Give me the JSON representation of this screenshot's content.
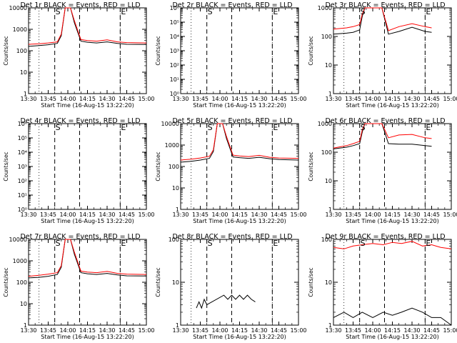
{
  "figure": {
    "xlabel": "Start Time (16-Aug-15 13:22:20)",
    "ylabel": "Counts/sec",
    "x_ticks": [
      "13:30",
      "13:45",
      "14:00",
      "14:15",
      "14:30",
      "14:45",
      "15:00"
    ],
    "colors": {
      "events": "#000000",
      "lld": "#ff0000",
      "axes": "#000000"
    }
  },
  "chart_data": [
    {
      "type": "line",
      "title": "Det 1r BLACK = Events, RED = LLD",
      "yscale": "log",
      "ylim": [
        1,
        10000
      ],
      "y_ticks": [
        "10000",
        "1000",
        "100",
        "10",
        "1"
      ],
      "x": [
        "13:30",
        "13:38",
        "13:45",
        "13:52",
        "13:55",
        "13:58",
        "14:02",
        "14:05",
        "14:10",
        "14:15",
        "14:22",
        "14:30",
        "14:38",
        "14:45",
        "15:00"
      ],
      "series": [
        {
          "name": "Events",
          "color": "#000000",
          "values": [
            160,
            175,
            190,
            220,
            500,
            10000,
            10000,
            2000,
            280,
            250,
            230,
            260,
            220,
            200,
            195
          ]
        },
        {
          "name": "LLD",
          "color": "#ff0000",
          "values": [
            200,
            210,
            230,
            260,
            600,
            10000,
            10000,
            2500,
            330,
            300,
            280,
            320,
            260,
            240,
            230
          ]
        }
      ],
      "vlines": [
        {
          "label": "S",
          "x": "13:50"
        },
        {
          "label": "",
          "x": "14:09"
        },
        {
          "label": "E",
          "x": "14:40"
        }
      ],
      "dotted_lines": [
        "13:38",
        "14:40"
      ]
    },
    {
      "type": "line",
      "title": "Det 2r BLACK = Events, RED = LLD",
      "yscale": "log",
      "ylim": [
        1,
        1000000
      ],
      "y_ticks": [
        "10⁶",
        "10⁵",
        "10⁴",
        "10³",
        "10²",
        "10¹",
        "10⁰"
      ],
      "x": [],
      "series": [],
      "vlines": [
        {
          "label": "S",
          "x": "13:50"
        },
        {
          "label": "",
          "x": "14:09"
        },
        {
          "label": "E",
          "x": "14:40"
        }
      ],
      "dotted_lines": [
        "13:38",
        "14:40"
      ]
    },
    {
      "type": "line",
      "title": "Det 3r BLACK = Events, RED = LLD",
      "yscale": "log",
      "ylim": [
        1,
        1000
      ],
      "y_ticks": [
        "1000",
        "100",
        "10",
        "1"
      ],
      "x": [
        "13:30",
        "13:40",
        "13:45",
        "13:50",
        "13:52",
        "13:54",
        "14:07",
        "14:12",
        "14:20",
        "14:30",
        "14:40",
        "14:45"
      ],
      "series": [
        {
          "name": "Events",
          "color": "#000000",
          "values": [
            120,
            130,
            140,
            170,
            500,
            1000,
            1000,
            120,
            150,
            210,
            150,
            140
          ]
        },
        {
          "name": "LLD",
          "color": "#ff0000",
          "values": [
            180,
            200,
            220,
            260,
            600,
            1000,
            1000,
            160,
            220,
            280,
            220,
            200
          ]
        }
      ],
      "vlines": [
        {
          "label": "S",
          "x": "13:50"
        },
        {
          "label": "",
          "x": "14:09"
        },
        {
          "label": "E",
          "x": "14:40"
        }
      ],
      "dotted_lines": [
        "13:38",
        "14:40"
      ]
    },
    {
      "type": "line",
      "title": "Det 4r BLACK = Events, RED = LLD",
      "yscale": "log",
      "ylim": [
        1,
        1000000
      ],
      "y_ticks": [
        "10⁶",
        "10⁵",
        "10⁴",
        "10³",
        "10²",
        "10¹",
        "10⁰"
      ],
      "x": [],
      "series": [],
      "vlines": [
        {
          "label": "S",
          "x": "13:50"
        },
        {
          "label": "",
          "x": "14:09"
        },
        {
          "label": "E",
          "x": "14:40"
        }
      ],
      "dotted_lines": [
        "13:38",
        "14:40"
      ]
    },
    {
      "type": "line",
      "title": "Det 5r BLACK = Events, RED = LLD",
      "yscale": "log",
      "ylim": [
        1,
        10000
      ],
      "y_ticks": [
        "10000",
        "1000",
        "100",
        "10",
        "1"
      ],
      "x": [
        "13:30",
        "13:38",
        "13:45",
        "13:52",
        "13:55",
        "13:58",
        "14:02",
        "14:05",
        "14:10",
        "14:15",
        "14:22",
        "14:30",
        "14:38",
        "14:45",
        "15:00"
      ],
      "series": [
        {
          "name": "Events",
          "color": "#000000",
          "values": [
            160,
            175,
            200,
            240,
            500,
            10000,
            10000,
            2000,
            280,
            260,
            240,
            270,
            230,
            210,
            200
          ]
        },
        {
          "name": "LLD",
          "color": "#ff0000",
          "values": [
            200,
            220,
            250,
            300,
            600,
            10000,
            10000,
            2500,
            340,
            310,
            290,
            330,
            270,
            250,
            240
          ]
        }
      ],
      "vlines": [
        {
          "label": "S",
          "x": "13:50"
        },
        {
          "label": "",
          "x": "14:09"
        },
        {
          "label": "E",
          "x": "14:40"
        }
      ],
      "dotted_lines": [
        "13:38",
        "14:40"
      ]
    },
    {
      "type": "line",
      "title": "Det 6r BLACK = Events, RED = LLD",
      "yscale": "log",
      "ylim": [
        1,
        1000
      ],
      "y_ticks": [
        "1000",
        "100",
        "10",
        "1"
      ],
      "x": [
        "13:30",
        "13:40",
        "13:45",
        "13:50",
        "13:52",
        "13:54",
        "14:07",
        "14:12",
        "14:20",
        "14:30",
        "14:40",
        "14:45"
      ],
      "series": [
        {
          "name": "Events",
          "color": "#000000",
          "values": [
            130,
            150,
            170,
            200,
            500,
            1000,
            1000,
            200,
            190,
            190,
            170,
            160
          ]
        },
        {
          "name": "LLD",
          "color": "#ff0000",
          "values": [
            140,
            170,
            200,
            240,
            600,
            1000,
            1000,
            320,
            400,
            420,
            320,
            300
          ]
        }
      ],
      "vlines": [
        {
          "label": "S",
          "x": "13:50"
        },
        {
          "label": "",
          "x": "14:09"
        },
        {
          "label": "E",
          "x": "14:40"
        }
      ],
      "dotted_lines": [
        "13:38",
        "14:40"
      ]
    },
    {
      "type": "line",
      "title": "Det 7r BLACK = Events, RED = LLD",
      "yscale": "log",
      "ylim": [
        1,
        10000
      ],
      "y_ticks": [
        "10000",
        "1000",
        "100",
        "10",
        "1"
      ],
      "x": [
        "13:30",
        "13:38",
        "13:45",
        "13:52",
        "13:55",
        "13:58",
        "14:02",
        "14:05",
        "14:10",
        "14:15",
        "14:22",
        "14:30",
        "14:38",
        "14:45",
        "15:00"
      ],
      "series": [
        {
          "name": "Events",
          "color": "#000000",
          "values": [
            160,
            170,
            190,
            230,
            500,
            10000,
            10000,
            2000,
            280,
            250,
            230,
            260,
            220,
            200,
            195
          ]
        },
        {
          "name": "LLD",
          "color": "#ff0000",
          "values": [
            190,
            210,
            240,
            280,
            600,
            10000,
            10000,
            2500,
            330,
            300,
            280,
            320,
            260,
            240,
            230
          ]
        }
      ],
      "vlines": [
        {
          "label": "S",
          "x": "13:50"
        },
        {
          "label": "",
          "x": "14:09"
        },
        {
          "label": "E",
          "x": "14:40"
        }
      ],
      "dotted_lines": [
        "13:38",
        "14:40"
      ]
    },
    {
      "type": "line",
      "title": "Det 8r BLACK = Events, RED = LLD",
      "yscale": "log",
      "ylim": [
        1,
        100
      ],
      "y_ticks": [
        "100",
        "10",
        "1"
      ],
      "x": [
        "13:42",
        "13:44",
        "13:46",
        "13:48",
        "13:50",
        "14:03",
        "14:06",
        "14:09",
        "14:12",
        "14:15",
        "14:18",
        "14:21",
        "14:24",
        "14:27"
      ],
      "series": [
        {
          "name": "Events",
          "color": "#000000",
          "values": [
            2.5,
            3.5,
            2.5,
            4,
            3,
            5,
            4,
            5,
            4,
            5,
            4,
            5,
            4,
            3.5
          ]
        }
      ],
      "vlines": [
        {
          "label": "S",
          "x": "13:50"
        },
        {
          "label": "",
          "x": "14:09"
        },
        {
          "label": "E",
          "x": "14:40"
        }
      ],
      "dotted_lines": [
        "13:38",
        "14:40"
      ]
    },
    {
      "type": "line",
      "title": "Det 9r BLACK = Events, RED = LLD",
      "yscale": "log",
      "ylim": [
        1,
        100
      ],
      "y_ticks": [
        "100",
        "10",
        "1"
      ],
      "x": [
        "13:30",
        "13:38",
        "13:45",
        "13:52",
        "14:00",
        "14:08",
        "14:15",
        "14:22",
        "14:30",
        "14:38",
        "14:45",
        "14:52",
        "15:00"
      ],
      "series": [
        {
          "name": "Events",
          "color": "#000000",
          "values": [
            1.5,
            2,
            1.5,
            2,
            1.5,
            2,
            1.7,
            2,
            2.5,
            2,
            1.5,
            1.5,
            1
          ]
        },
        {
          "name": "LLD",
          "color": "#ff0000",
          "values": [
            65,
            60,
            70,
            75,
            80,
            75,
            85,
            80,
            90,
            70,
            75,
            65,
            60
          ]
        }
      ],
      "vlines": [
        {
          "label": "S",
          "x": "13:50"
        },
        {
          "label": "",
          "x": "14:09"
        },
        {
          "label": "E",
          "x": "14:40"
        }
      ],
      "dotted_lines": [
        "13:38",
        "14:40"
      ]
    }
  ]
}
